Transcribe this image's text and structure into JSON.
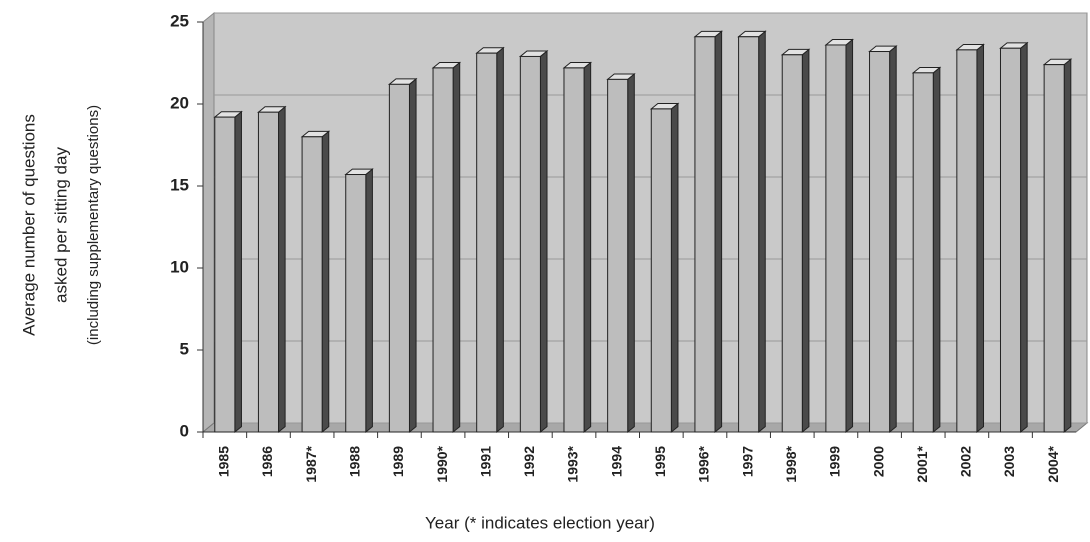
{
  "chart_data": {
    "type": "bar3d",
    "ylabel": [
      "Average number of questions",
      "asked per sitting day",
      "(including supplementary questions)"
    ],
    "xlabel": "Year (* indicates election year)",
    "categories": [
      "1985",
      "1986",
      "1987*",
      "1988",
      "1989",
      "1990*",
      "1991",
      "1992",
      "1993*",
      "1994",
      "1995",
      "1996*",
      "1997",
      "1998*",
      "1999",
      "2000",
      "2001*",
      "2002",
      "2003",
      "2004*"
    ],
    "values": [
      19.2,
      19.5,
      18,
      15.7,
      21.2,
      22.2,
      23.1,
      22.9,
      22.2,
      21.5,
      19.7,
      24.1,
      24.1,
      23,
      23.6,
      23.2,
      21.9,
      23.3,
      23.4,
      22.4
    ],
    "color": "#bdbdbd",
    "ylim": [
      0,
      25
    ],
    "yticks": [
      0,
      5,
      10,
      15,
      20,
      25
    ],
    "grid": true
  }
}
